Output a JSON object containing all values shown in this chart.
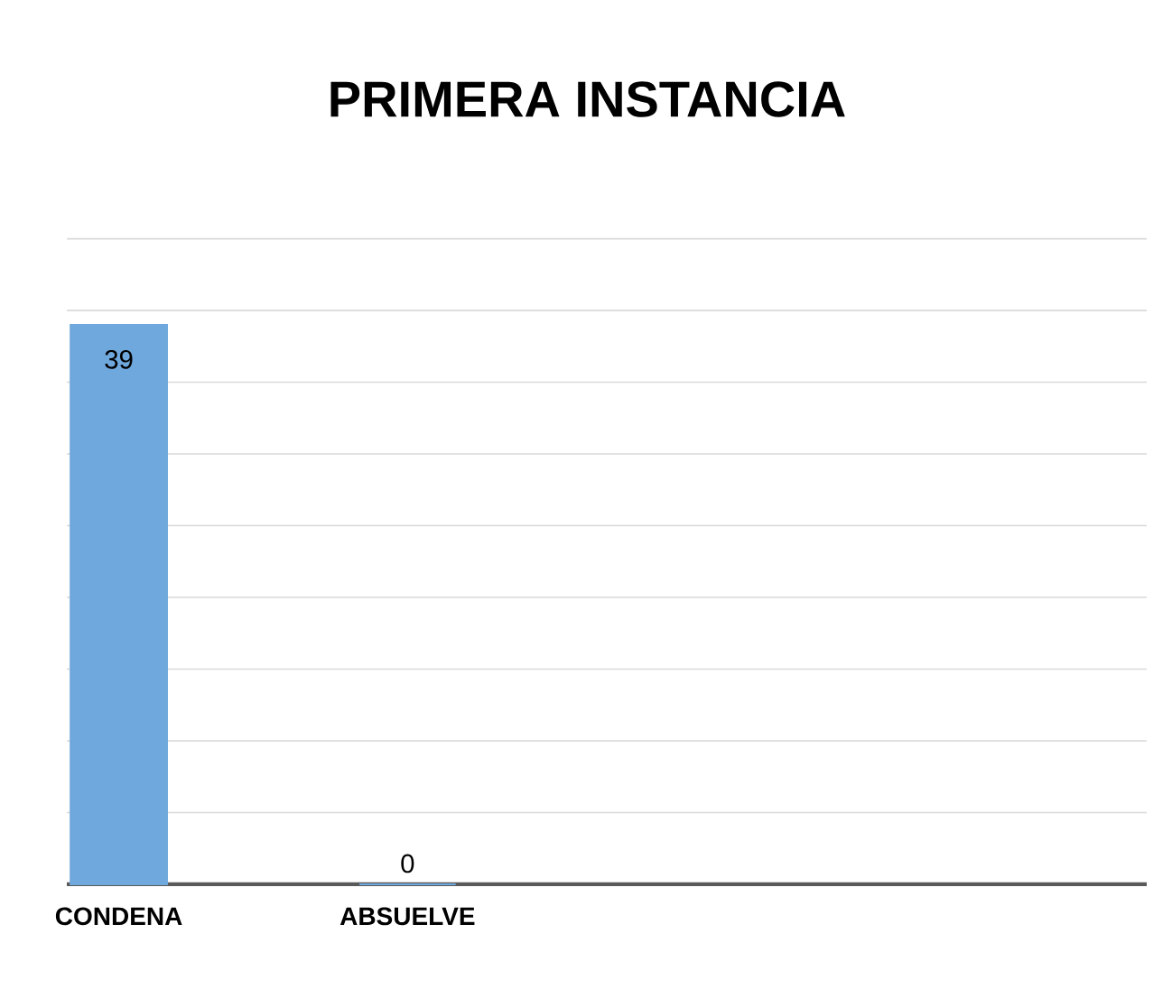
{
  "chart_data": {
    "type": "bar",
    "title": "PRIMERA INSTANCIA",
    "categories": [
      "CONDENA",
      "ABSUELVE"
    ],
    "values": [
      39,
      0
    ],
    "color": "#6fa8dc",
    "grid": "y",
    "tick_labels": "x",
    "data_labels": true
  }
}
